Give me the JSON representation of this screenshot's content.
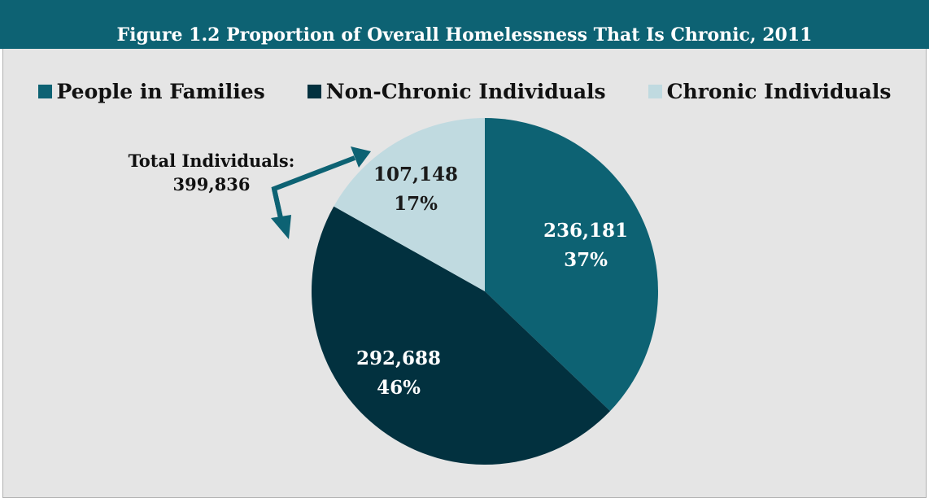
{
  "chart_data": {
    "type": "pie",
    "title": "Figure 1.2 Proportion of Overall Homelessness That Is Chronic, 2011",
    "legend": "top",
    "slices": [
      {
        "name": "People in Families",
        "value": 236181,
        "percent": "37%",
        "value_label": "236,181",
        "color": "#0d6273",
        "label_color": "#ffffff"
      },
      {
        "name": "Non-Chronic Individuals",
        "value": 292688,
        "percent": "46%",
        "value_label": "292,688",
        "color": "#02313f",
        "label_color": "#ffffff"
      },
      {
        "name": "Chronic Individuals",
        "value": 107148,
        "percent": "17%",
        "value_label": "107,148",
        "color": "#c0dae0",
        "label_color": "#1a1a1a"
      }
    ],
    "annotation": {
      "label": "Total Individuals:",
      "value": "399,836",
      "arrow_color": "#0d6273"
    }
  }
}
